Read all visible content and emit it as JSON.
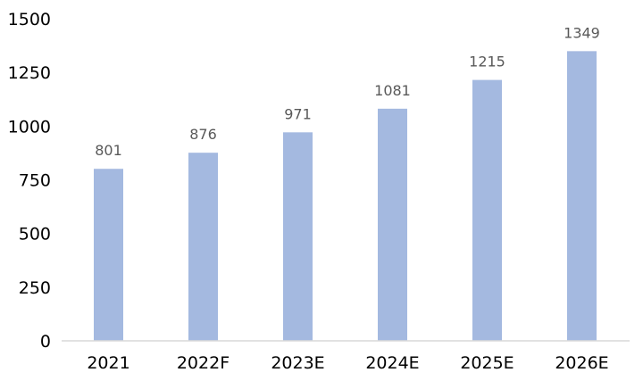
{
  "chart_data": {
    "type": "bar",
    "categories": [
      "2021",
      "2022F",
      "2023E",
      "2024E",
      "2025E",
      "2026E"
    ],
    "values": [
      801,
      876,
      971,
      1081,
      1215,
      1349
    ],
    "title": "",
    "xlabel": "",
    "ylabel": "",
    "ylim": [
      0,
      1500
    ],
    "yticks": [
      0,
      250,
      500,
      750,
      1000,
      1250,
      1500
    ],
    "grid": false,
    "legend": "none",
    "data_labels": true,
    "colors": {
      "bar": "#A4B9E0",
      "axis": "#D9D9D9",
      "tick_text": "#000000",
      "data_label": "#595959"
    }
  }
}
